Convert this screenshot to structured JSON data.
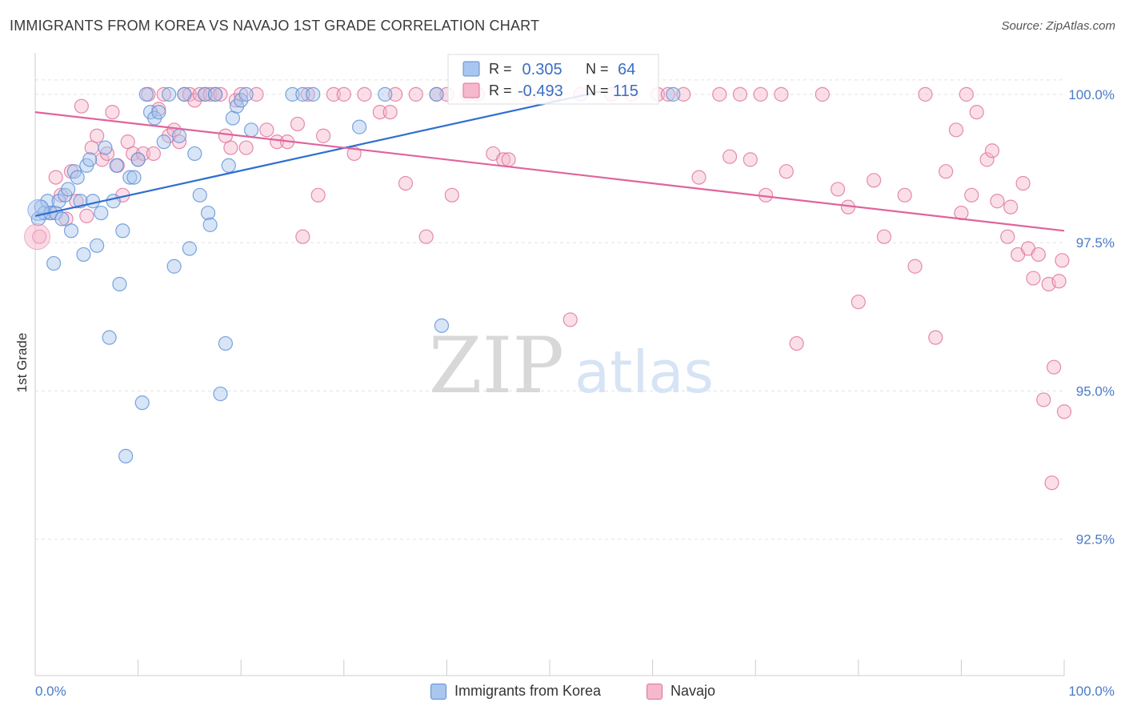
{
  "chart_data": {
    "type": "scatter",
    "title": "IMMIGRANTS FROM KOREA VS NAVAJO 1ST GRADE CORRELATION CHART",
    "source": "Source: ZipAtlas.com",
    "xlabel": "",
    "ylabel": "1st Grade",
    "xlim": [
      0,
      100
    ],
    "ylim": [
      90.2,
      100.7
    ],
    "x_tick_labels": [
      "0.0%",
      "100.0%"
    ],
    "y_ticks": [
      {
        "value": 100.0,
        "label": "100.0%"
      },
      {
        "value": 97.5,
        "label": "97.5%"
      },
      {
        "value": 95.0,
        "label": "95.0%"
      },
      {
        "value": 92.5,
        "label": "92.5%"
      }
    ],
    "grid": true,
    "watermark": "ZIPatlas",
    "stats": [
      {
        "r_label": "R =",
        "r": " 0.305",
        "n_label": "N =",
        "n": "64"
      },
      {
        "r_label": "R =",
        "r": "-0.493",
        "n_label": "N =",
        "n": "115"
      }
    ],
    "series": [
      {
        "name": "Immigrants from Korea",
        "color": "#5b8fd6",
        "fill": "#a9c6ee",
        "trend": {
          "x": [
            0,
            55
          ],
          "y": [
            97.95,
            100.05
          ]
        },
        "points": [
          [
            0.3,
            97.9
          ],
          [
            0.6,
            98.1
          ],
          [
            0.9,
            98.0
          ],
          [
            1.2,
            98.2
          ],
          [
            1.5,
            98.0
          ],
          [
            1.8,
            97.15
          ],
          [
            2.0,
            98.0
          ],
          [
            2.3,
            98.2
          ],
          [
            2.6,
            97.9
          ],
          [
            2.9,
            98.3
          ],
          [
            3.2,
            98.4
          ],
          [
            3.5,
            97.7
          ],
          [
            3.8,
            98.7
          ],
          [
            4.1,
            98.6
          ],
          [
            4.4,
            98.2
          ],
          [
            4.7,
            97.3
          ],
          [
            5.0,
            98.8
          ],
          [
            5.3,
            98.9
          ],
          [
            5.6,
            98.2
          ],
          [
            6.0,
            97.45
          ],
          [
            6.4,
            98.0
          ],
          [
            6.8,
            99.1
          ],
          [
            7.2,
            95.9
          ],
          [
            7.6,
            98.2
          ],
          [
            7.9,
            98.8
          ],
          [
            8.2,
            96.8
          ],
          [
            8.5,
            97.7
          ],
          [
            8.8,
            93.9
          ],
          [
            9.2,
            98.6
          ],
          [
            9.6,
            98.6
          ],
          [
            10.0,
            98.9
          ],
          [
            10.4,
            94.8
          ],
          [
            10.8,
            100.0
          ],
          [
            11.2,
            99.7
          ],
          [
            11.6,
            99.6
          ],
          [
            12.0,
            99.7
          ],
          [
            12.5,
            99.2
          ],
          [
            13.0,
            100.0
          ],
          [
            13.5,
            97.1
          ],
          [
            14.0,
            99.3
          ],
          [
            14.5,
            100.0
          ],
          [
            15.0,
            97.4
          ],
          [
            15.5,
            99.0
          ],
          [
            16.0,
            98.3
          ],
          [
            16.5,
            100.0
          ],
          [
            16.8,
            98.0
          ],
          [
            17.0,
            97.8
          ],
          [
            17.5,
            100.0
          ],
          [
            18.0,
            94.95
          ],
          [
            18.5,
            95.8
          ],
          [
            18.8,
            98.8
          ],
          [
            19.2,
            99.6
          ],
          [
            19.6,
            99.8
          ],
          [
            20.0,
            99.9
          ],
          [
            20.5,
            100.0
          ],
          [
            21.0,
            99.4
          ],
          [
            25.0,
            100.0
          ],
          [
            26.0,
            100.0
          ],
          [
            27.0,
            100.0
          ],
          [
            34.0,
            100.0
          ],
          [
            31.5,
            99.45
          ],
          [
            39.0,
            100.0
          ],
          [
            39.5,
            96.1
          ],
          [
            62.0,
            100.0
          ]
        ]
      },
      {
        "name": "Navajo",
        "color": "#e06f9a",
        "fill": "#f5b8cc",
        "trend": {
          "x": [
            0,
            100
          ],
          "y": [
            99.7,
            97.7
          ]
        },
        "points": [
          [
            0.4,
            97.6
          ],
          [
            1.5,
            98.0
          ],
          [
            2.0,
            98.6
          ],
          [
            2.5,
            98.3
          ],
          [
            3.0,
            97.9
          ],
          [
            3.5,
            98.7
          ],
          [
            4.0,
            98.2
          ],
          [
            4.5,
            99.8
          ],
          [
            5.0,
            97.95
          ],
          [
            5.5,
            99.1
          ],
          [
            6.0,
            99.3
          ],
          [
            6.5,
            98.9
          ],
          [
            7.0,
            99.0
          ],
          [
            7.5,
            99.7
          ],
          [
            8.0,
            98.8
          ],
          [
            8.5,
            98.3
          ],
          [
            9.0,
            99.2
          ],
          [
            9.5,
            99.0
          ],
          [
            10.0,
            98.9
          ],
          [
            10.5,
            99.0
          ],
          [
            11.0,
            100.0
          ],
          [
            11.5,
            99.0
          ],
          [
            12.0,
            99.75
          ],
          [
            12.5,
            100.0
          ],
          [
            13.0,
            99.3
          ],
          [
            13.5,
            99.4
          ],
          [
            14.0,
            99.2
          ],
          [
            14.5,
            100.0
          ],
          [
            15.0,
            100.0
          ],
          [
            15.5,
            99.9
          ],
          [
            16.0,
            100.0
          ],
          [
            16.5,
            100.0
          ],
          [
            17.0,
            100.0
          ],
          [
            17.5,
            100.0
          ],
          [
            18.0,
            100.0
          ],
          [
            18.5,
            99.3
          ],
          [
            19.0,
            99.1
          ],
          [
            19.5,
            99.9
          ],
          [
            20.0,
            100.0
          ],
          [
            20.5,
            99.1
          ],
          [
            21.5,
            100.0
          ],
          [
            22.5,
            99.4
          ],
          [
            23.5,
            99.2
          ],
          [
            24.5,
            99.2
          ],
          [
            25.5,
            99.5
          ],
          [
            26.0,
            97.6
          ],
          [
            26.5,
            100.0
          ],
          [
            27.5,
            98.3
          ],
          [
            28.0,
            99.3
          ],
          [
            29.0,
            100.0
          ],
          [
            30.0,
            100.0
          ],
          [
            31.0,
            99.0
          ],
          [
            32.0,
            100.0
          ],
          [
            33.5,
            99.7
          ],
          [
            34.5,
            99.7
          ],
          [
            35.0,
            100.0
          ],
          [
            36.0,
            98.5
          ],
          [
            37.0,
            100.0
          ],
          [
            38.0,
            97.6
          ],
          [
            39.0,
            100.0
          ],
          [
            40.0,
            100.0
          ],
          [
            40.5,
            98.3
          ],
          [
            42.0,
            100.0
          ],
          [
            43.0,
            100.0
          ],
          [
            44.5,
            99.0
          ],
          [
            45.5,
            98.9
          ],
          [
            46.0,
            98.9
          ],
          [
            48.0,
            100.0
          ],
          [
            50.5,
            100.0
          ],
          [
            52.0,
            96.2
          ],
          [
            53.0,
            100.0
          ],
          [
            56.0,
            100.0
          ],
          [
            58.0,
            100.0
          ],
          [
            60.5,
            100.0
          ],
          [
            61.5,
            100.0
          ],
          [
            63.0,
            100.0
          ],
          [
            64.5,
            98.6
          ],
          [
            66.5,
            100.0
          ],
          [
            67.5,
            98.95
          ],
          [
            68.5,
            100.0
          ],
          [
            69.5,
            98.9
          ],
          [
            70.5,
            100.0
          ],
          [
            71.0,
            98.3
          ],
          [
            72.5,
            100.0
          ],
          [
            73.0,
            98.7
          ],
          [
            74.0,
            95.8
          ],
          [
            76.5,
            100.0
          ],
          [
            78.0,
            98.4
          ],
          [
            79.0,
            98.1
          ],
          [
            80.0,
            96.5
          ],
          [
            81.5,
            98.55
          ],
          [
            82.5,
            97.6
          ],
          [
            84.5,
            98.3
          ],
          [
            85.5,
            97.1
          ],
          [
            86.5,
            100.0
          ],
          [
            87.5,
            95.9
          ],
          [
            88.5,
            98.7
          ],
          [
            89.5,
            99.4
          ],
          [
            90.0,
            98.0
          ],
          [
            90.5,
            100.0
          ],
          [
            91.0,
            98.3
          ],
          [
            91.5,
            99.7
          ],
          [
            92.5,
            98.9
          ],
          [
            93.0,
            99.05
          ],
          [
            93.5,
            98.2
          ],
          [
            94.5,
            97.6
          ],
          [
            94.8,
            98.1
          ],
          [
            95.5,
            97.3
          ],
          [
            96.0,
            98.5
          ],
          [
            96.5,
            97.4
          ],
          [
            97.0,
            96.9
          ],
          [
            97.5,
            97.3
          ],
          [
            98.0,
            94.85
          ],
          [
            98.5,
            96.8
          ],
          [
            98.8,
            93.45
          ],
          [
            99.0,
            95.4
          ],
          [
            99.5,
            96.85
          ],
          [
            99.8,
            97.2
          ],
          [
            100.0,
            94.65
          ]
        ]
      }
    ]
  }
}
